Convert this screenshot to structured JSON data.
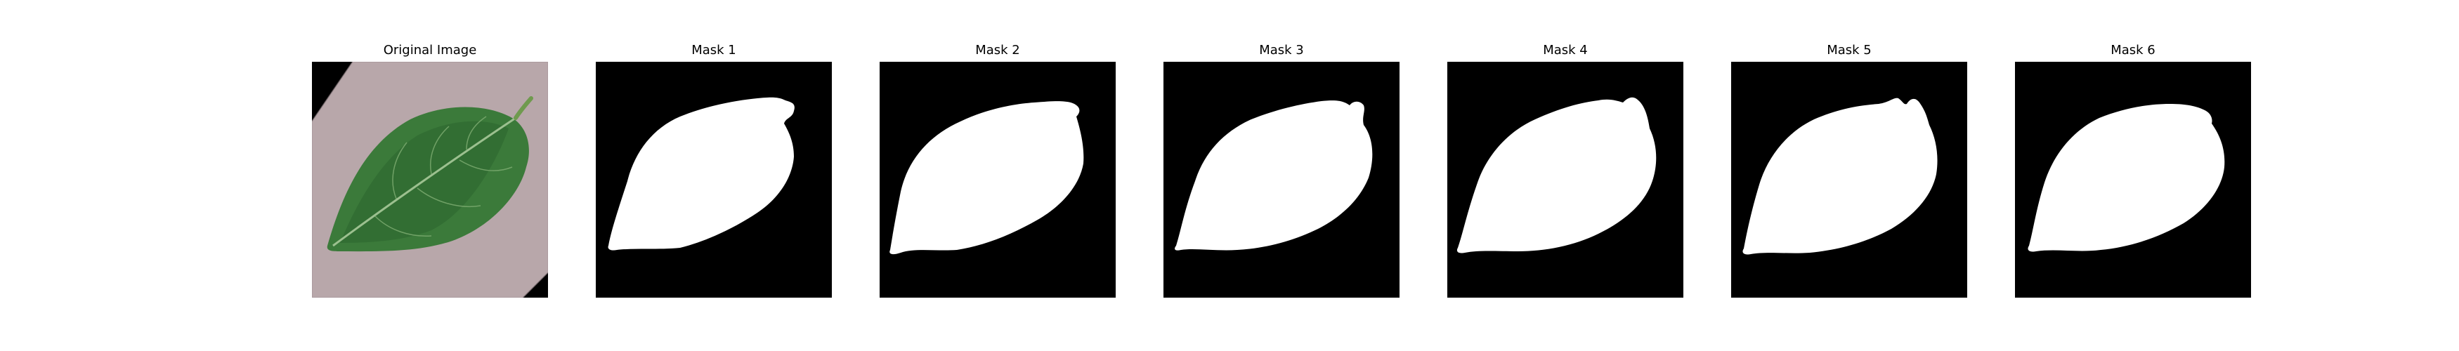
{
  "panels": [
    {
      "title": "Original Image",
      "kind": "photo",
      "subject": "leaf-photo"
    },
    {
      "title": "Mask 1",
      "kind": "mask"
    },
    {
      "title": "Mask 2",
      "kind": "mask"
    },
    {
      "title": "Mask 3",
      "kind": "mask"
    },
    {
      "title": "Mask 4",
      "kind": "mask"
    },
    {
      "title": "Mask 5",
      "kind": "mask"
    },
    {
      "title": "Mask 6",
      "kind": "mask"
    }
  ],
  "colors": {
    "background": "#ffffff",
    "photo_background": "#000000",
    "paper": "#b8a7aa",
    "leaf_dark": "#1f4d25",
    "leaf_mid": "#3b7a3a",
    "leaf_light": "#5a9656",
    "vein": "#9cc08f",
    "mask_background": "#000000",
    "mask_fill": "#ffffff"
  }
}
